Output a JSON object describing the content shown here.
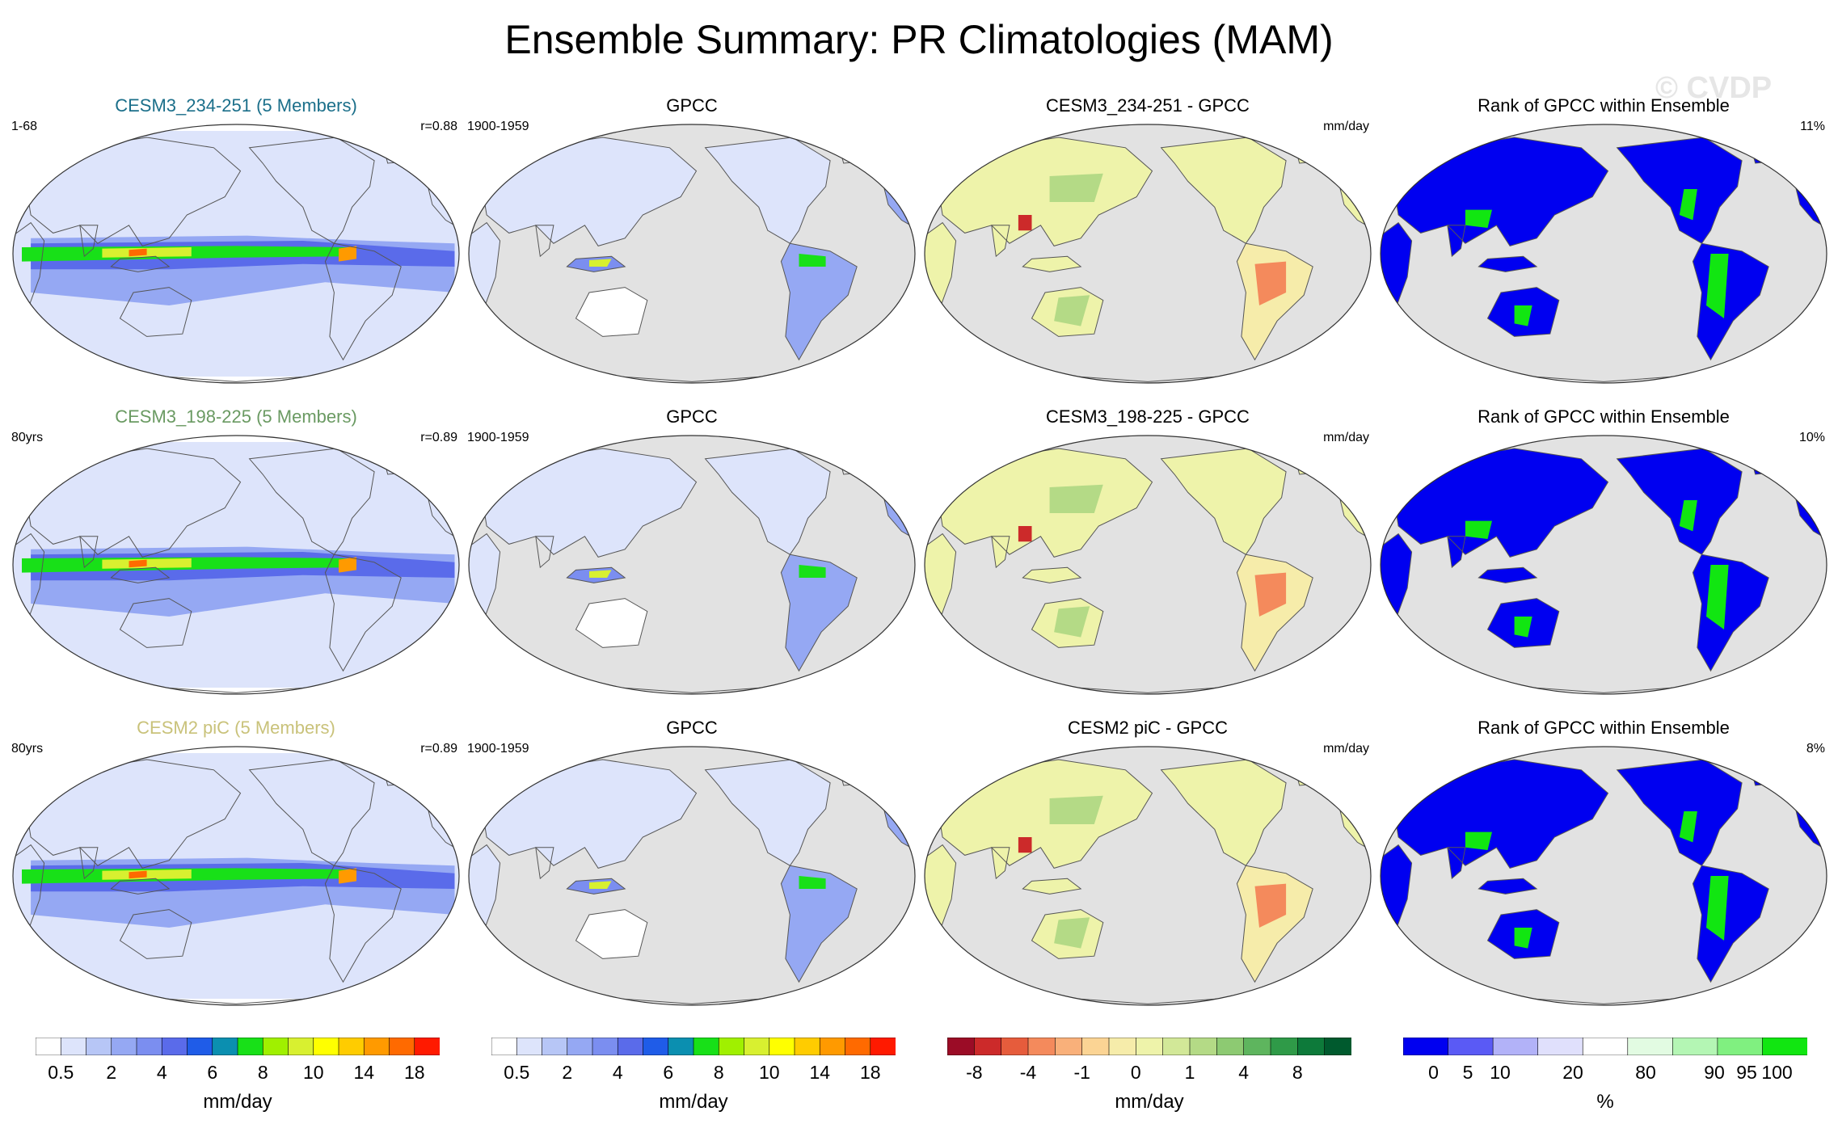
{
  "title": "Ensemble Summary: PR Climatologies (MAM)",
  "watermark": "© CVDP",
  "colors": {
    "ocean_gray": "#e2e2e2",
    "title_row1": "#1b6f8a",
    "title_row2": "#6a9a62",
    "title_row3": "#c9c27a",
    "rank_low": "#0000f0",
    "rank_high": "#11e611"
  },
  "chart_data": [
    {
      "type": "heatmap",
      "row": 1,
      "col": 1,
      "kind": "precip",
      "title": "CESM3_234-251 (5 Members)",
      "title_color": "#1b6f8a",
      "left_note": "1-68",
      "right_note": "r=0.88"
    },
    {
      "type": "heatmap",
      "row": 1,
      "col": 2,
      "kind": "obs",
      "title": "GPCC",
      "left_note": "1900-1959",
      "right_note": ""
    },
    {
      "type": "heatmap",
      "row": 1,
      "col": 3,
      "kind": "diff",
      "title": "CESM3_234-251 - GPCC",
      "left_note": "",
      "right_note": "mm/day"
    },
    {
      "type": "heatmap",
      "row": 1,
      "col": 4,
      "kind": "rank",
      "title": "Rank of GPCC within Ensemble",
      "left_note": "",
      "right_note": "11%"
    },
    {
      "type": "heatmap",
      "row": 2,
      "col": 1,
      "kind": "precip",
      "title": "CESM3_198-225 (5 Members)",
      "title_color": "#6a9a62",
      "left_note": "80yrs",
      "right_note": "r=0.89"
    },
    {
      "type": "heatmap",
      "row": 2,
      "col": 2,
      "kind": "obs",
      "title": "GPCC",
      "left_note": "1900-1959",
      "right_note": ""
    },
    {
      "type": "heatmap",
      "row": 2,
      "col": 3,
      "kind": "diff",
      "title": "CESM3_198-225 - GPCC",
      "left_note": "",
      "right_note": "mm/day"
    },
    {
      "type": "heatmap",
      "row": 2,
      "col": 4,
      "kind": "rank",
      "title": "Rank of GPCC within Ensemble",
      "left_note": "",
      "right_note": "10%"
    },
    {
      "type": "heatmap",
      "row": 3,
      "col": 1,
      "kind": "precip",
      "title": "CESM2 piC (5 Members)",
      "title_color": "#c9c27a",
      "left_note": "80yrs",
      "right_note": "r=0.89"
    },
    {
      "type": "heatmap",
      "row": 3,
      "col": 2,
      "kind": "obs",
      "title": "GPCC",
      "left_note": "1900-1959",
      "right_note": ""
    },
    {
      "type": "heatmap",
      "row": 3,
      "col": 3,
      "kind": "diff",
      "title": "CESM2 piC - GPCC",
      "left_note": "",
      "right_note": "mm/day"
    },
    {
      "type": "heatmap",
      "row": 3,
      "col": 4,
      "kind": "rank",
      "title": "Rank of GPCC within Ensemble",
      "left_note": "",
      "right_note": "8%"
    }
  ],
  "colorbars": [
    {
      "id": "precip1",
      "units": "mm/day",
      "colors": [
        "#ffffff",
        "#dde4fb",
        "#b7c6f6",
        "#95a8f3",
        "#7b8ef0",
        "#5a6bea",
        "#1f5ce8",
        "#0b8fb0",
        "#18e018",
        "#a0f000",
        "#d8f030",
        "#ffff00",
        "#ffcc00",
        "#ff9a00",
        "#ff6a00",
        "#ff1a00"
      ],
      "labels": [
        {
          "text": "0.5",
          "b": 1
        },
        {
          "text": "2",
          "b": 3
        },
        {
          "text": "4",
          "b": 5
        },
        {
          "text": "6",
          "b": 7
        },
        {
          "text": "8",
          "b": 9
        },
        {
          "text": "10",
          "b": 11
        },
        {
          "text": "14",
          "b": 13
        },
        {
          "text": "18",
          "b": 15
        }
      ]
    },
    {
      "id": "precip2",
      "units": "mm/day",
      "colors": [
        "#ffffff",
        "#dde4fb",
        "#b7c6f6",
        "#95a8f3",
        "#7b8ef0",
        "#5a6bea",
        "#1f5ce8",
        "#0b8fb0",
        "#18e018",
        "#a0f000",
        "#d8f030",
        "#ffff00",
        "#ffcc00",
        "#ff9a00",
        "#ff6a00",
        "#ff1a00"
      ],
      "labels": [
        {
          "text": "0.5",
          "b": 1
        },
        {
          "text": "2",
          "b": 3
        },
        {
          "text": "4",
          "b": 5
        },
        {
          "text": "6",
          "b": 7
        },
        {
          "text": "8",
          "b": 9
        },
        {
          "text": "10",
          "b": 11
        },
        {
          "text": "14",
          "b": 13
        },
        {
          "text": "18",
          "b": 15
        }
      ]
    },
    {
      "id": "diff",
      "units": "mm/day",
      "colors": [
        "#9b0c26",
        "#cc2a2a",
        "#e65c3c",
        "#f48a5c",
        "#f9b07a",
        "#fbd494",
        "#f6ecaa",
        "#eef3aa",
        "#d2e898",
        "#b4da86",
        "#8dca72",
        "#5eb55e",
        "#2f9a48",
        "#0d7a3a",
        "#005a2e"
      ],
      "labels": [
        {
          "text": "-8",
          "b": 1
        },
        {
          "text": "-4",
          "b": 3
        },
        {
          "text": "-1",
          "b": 5
        },
        {
          "text": "0",
          "b": 7
        },
        {
          "text": "1",
          "b": 9
        },
        {
          "text": "4",
          "b": 11
        },
        {
          "text": "8",
          "b": 13
        }
      ]
    },
    {
      "id": "rank",
      "units": "%",
      "colors": [
        "#0000f0",
        "#5a5af5",
        "#b2b2f8",
        "#e0e0fc",
        "#ffffff",
        "#e2fbe2",
        "#b4f6b4",
        "#80f080",
        "#11e611"
      ],
      "labels": [
        {
          "text": "0",
          "pos": 0.075
        },
        {
          "text": "5",
          "pos": 0.16
        },
        {
          "text": "10",
          "pos": 0.24
        },
        {
          "text": "20",
          "pos": 0.42
        },
        {
          "text": "80",
          "pos": 0.6
        },
        {
          "text": "90",
          "pos": 0.77
        },
        {
          "text": "95",
          "pos": 0.85
        },
        {
          "text": "100",
          "pos": 0.925
        }
      ]
    }
  ]
}
